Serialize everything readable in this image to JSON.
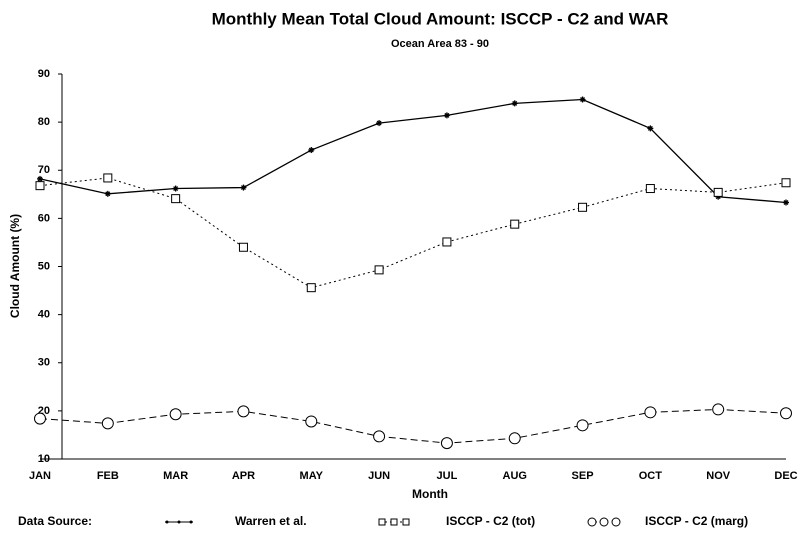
{
  "chart_data": {
    "type": "line",
    "title": "Monthly Mean Total Cloud Amount: ISCCP - C2 and WAR",
    "subtitle": "Ocean Area 83 - 90",
    "x_label": "Month",
    "y_label": "Cloud Amount (%)",
    "legend_title": "Data Source:",
    "categories": [
      "JAN",
      "FEB",
      "MAR",
      "APR",
      "MAY",
      "JUN",
      "JUL",
      "AUG",
      "SEP",
      "OCT",
      "NOV",
      "DEC"
    ],
    "series": [
      {
        "name": "Warren et al.",
        "color": "#000000",
        "values": [
          68.2,
          65.1,
          66.2,
          66.4,
          74.2,
          79.8,
          81.4,
          83.9,
          84.7,
          78.7,
          64.5,
          63.3
        ]
      },
      {
        "name": "ISCCP - C2 (tot)",
        "color": "#000000",
        "values": [
          66.8,
          68.4,
          64.1,
          54.0,
          45.6,
          49.3,
          55.1,
          58.8,
          62.3,
          66.2,
          65.4,
          67.4
        ]
      },
      {
        "name": "ISCCP - C2 (marg)",
        "color": "#000000",
        "values": [
          18.4,
          17.4,
          19.3,
          19.9,
          17.8,
          14.7,
          13.3,
          14.3,
          17.0,
          19.7,
          20.3,
          19.5
        ]
      }
    ],
    "ylim": [
      10,
      90
    ],
    "yticks": [
      10,
      20,
      30,
      40,
      50,
      60,
      70,
      80,
      90
    ]
  }
}
